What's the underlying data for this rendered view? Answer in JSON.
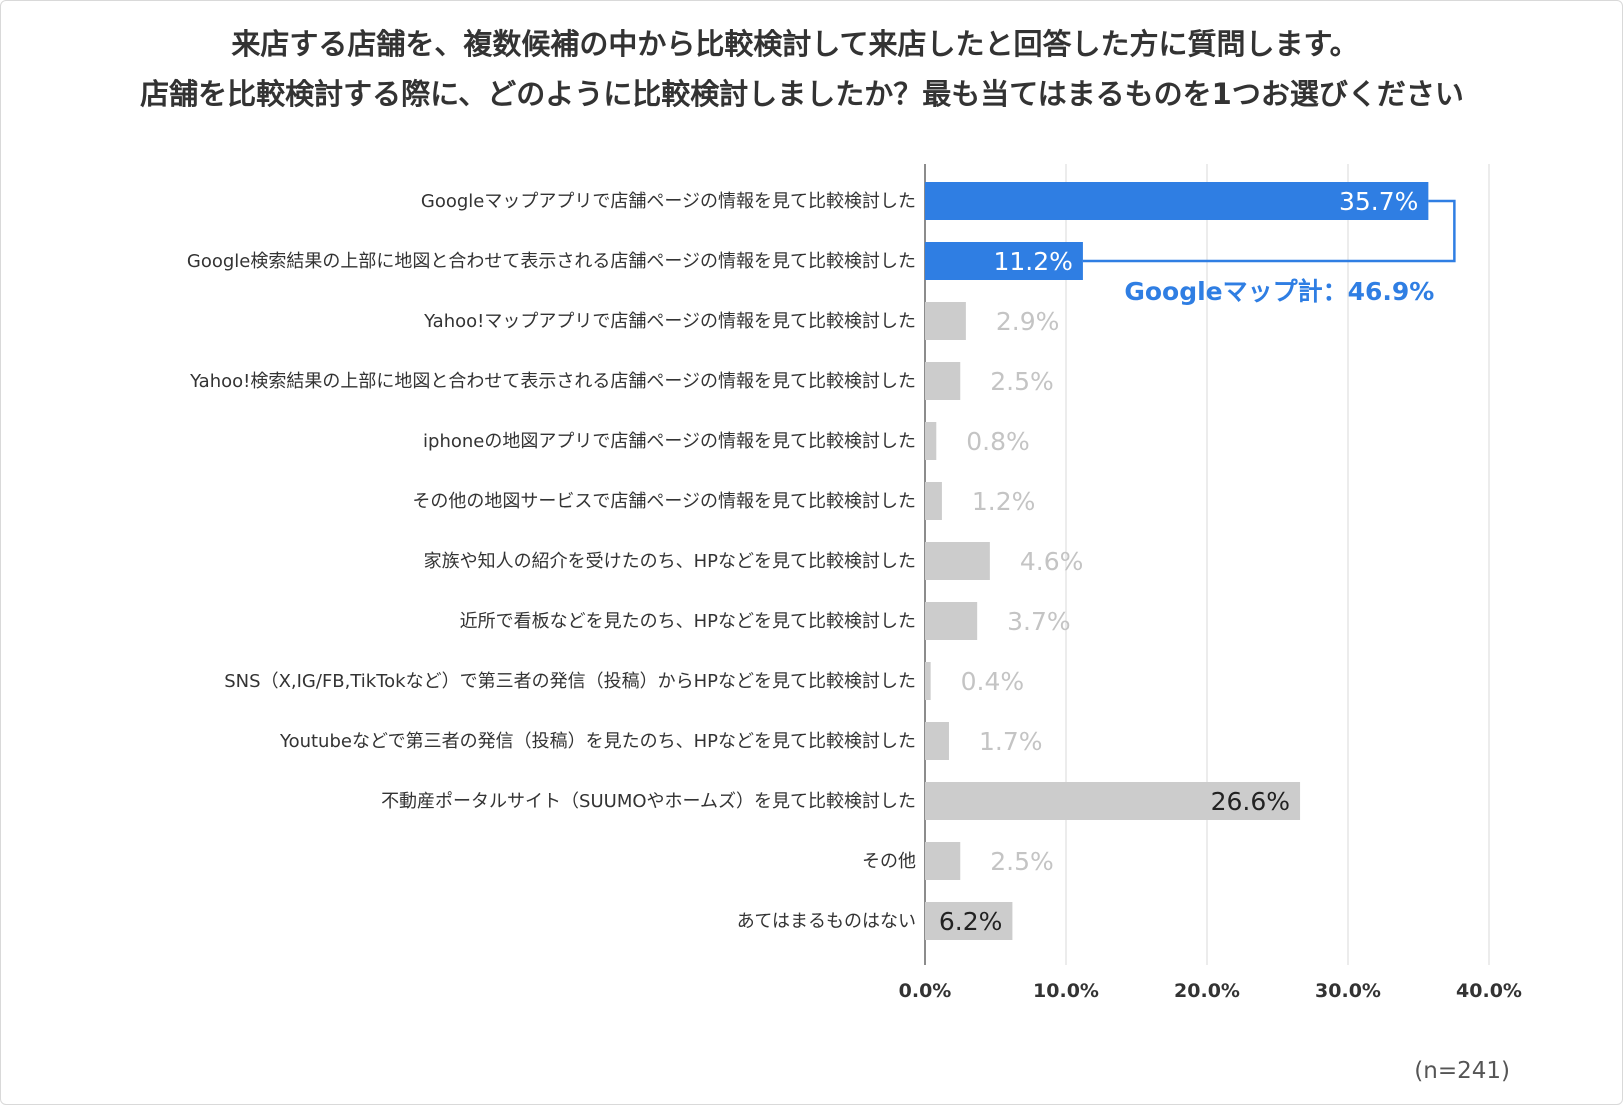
{
  "chart_data": {
    "type": "bar",
    "orientation": "horizontal",
    "title": [
      "来店する店舗を、複数候補の中から比較検討して来店したと回答した方に質問します。",
      "店舗を比較検討する際に、どのように比較検討しましたか？最も当てはまるものを1つお選びください"
    ],
    "categories": [
      "Googleマップアプリで店舗ページの情報を見て比較検討した",
      "Google検索結果の上部に地図と合わせて表示される店舗ページの情報を見て比較検討した",
      "Yahoo!マップアプリで店舗ページの情報を見て比較検討した",
      "Yahoo!検索結果の上部に地図と合わせて表示される店舗ページの情報を見て比較検討した",
      "iphoneの地図アプリで店舗ページの情報を見て比較検討した",
      "その他の地図サービスで店舗ページの情報を見て比較検討した",
      "家族や知人の紹介を受けたのち、HPなどを見て比較検討した",
      "近所で看板などを見たのち、HPなどを見て比較検討した",
      "SNS（X,IG/FB,TikTokなど）で第三者の発信（投稿）からHPなどを見て比較検討した",
      "Youtubeなどで第三者の発信（投稿）を見たのち、HPなどを見て比較検討した",
      "不動産ポータルサイト（SUUMOやホームズ）を見て比較検討した",
      "その他",
      "あてはまるものはない"
    ],
    "values": [
      35.7,
      11.2,
      2.9,
      2.5,
      0.8,
      1.2,
      4.6,
      3.7,
      0.4,
      1.7,
      26.6,
      2.5,
      6.2
    ],
    "value_labels": [
      "35.7%",
      "11.2%",
      "2.9%",
      "2.5%",
      "0.8%",
      "1.2%",
      "4.6%",
      "3.7%",
      "0.4%",
      "1.7%",
      "26.6%",
      "2.5%",
      "6.2%"
    ],
    "xlim": [
      0,
      40
    ],
    "x_ticks": [
      0,
      10,
      20,
      30,
      40
    ],
    "x_tick_labels": [
      "0.0%",
      "10.0%",
      "20.0%",
      "30.0%",
      "40.0%"
    ],
    "grid": true,
    "legend": "none",
    "highlighted_indices": [
      0,
      1
    ],
    "bracket_annotation": "Googleマップ計：46.9%",
    "note": "(n=241)"
  },
  "colors": {
    "highlight": "#2f7ee3",
    "highlight_label_inside": "#ffffff",
    "bar": "#cccccc",
    "label_outside_light": "#c4c4c4",
    "label_inside_dark": "#222222",
    "grid": "#d9d9d9",
    "axis": "#666666"
  }
}
